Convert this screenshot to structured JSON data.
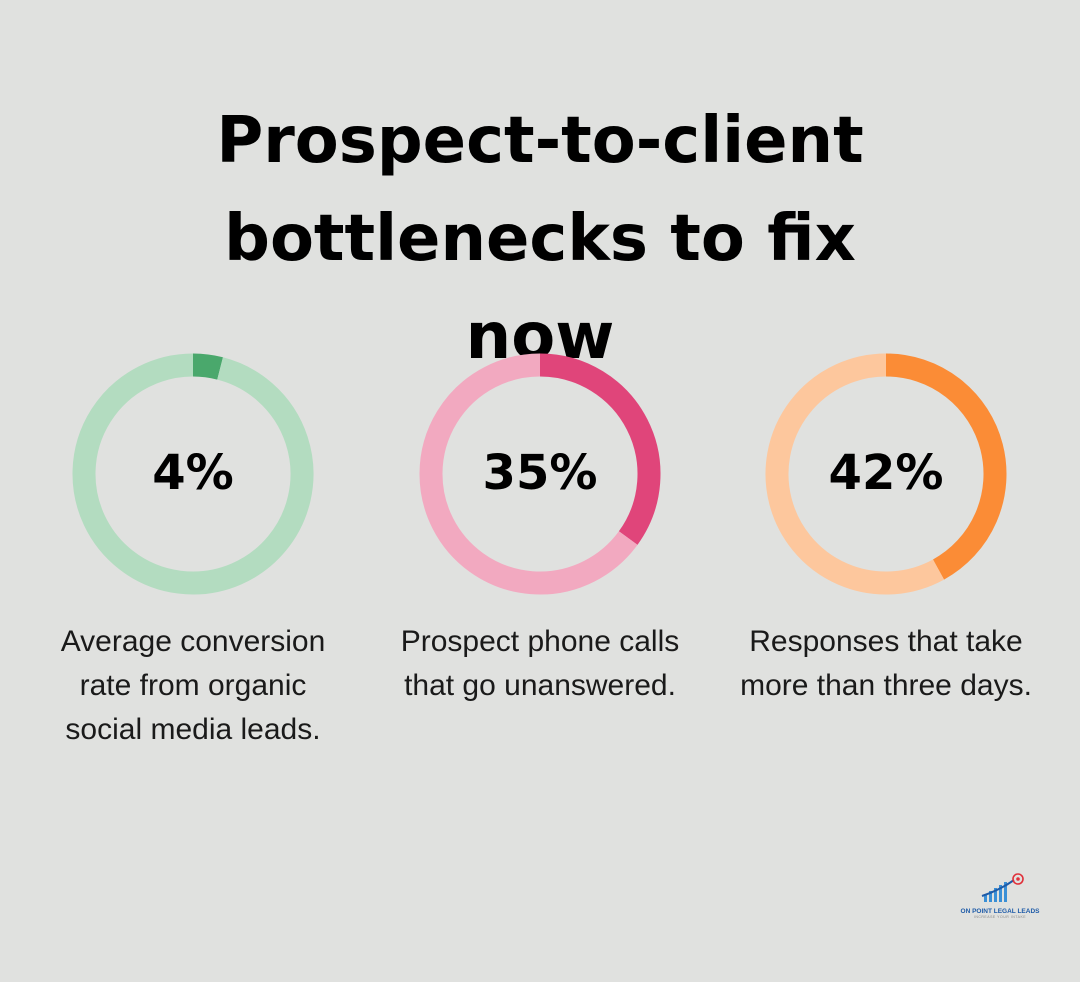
{
  "title": "Prospect-to-client bottlenecks to fix now",
  "chart_data": [
    {
      "type": "donut",
      "values": [
        4,
        96
      ],
      "value_labels": [
        "4%",
        null
      ],
      "colors": [
        "#4aa86c",
        "#b3dcc0"
      ],
      "caption": "Average conversion rate from organic social media leads."
    },
    {
      "type": "donut",
      "values": [
        35,
        65
      ],
      "value_labels": [
        "35%",
        null
      ],
      "colors": [
        "#e0457a",
        "#f2a9c0"
      ],
      "caption": "Prospect phone calls that go unanswered."
    },
    {
      "type": "donut",
      "values": [
        42,
        58
      ],
      "value_labels": [
        "42%",
        null
      ],
      "colors": [
        "#fb8c36",
        "#fdc79d"
      ],
      "caption": "Responses that take more than three days."
    }
  ],
  "logo": {
    "name": "ON POINT LEGAL LEADS",
    "tagline": "INCREASE YOUR INTAKE"
  }
}
